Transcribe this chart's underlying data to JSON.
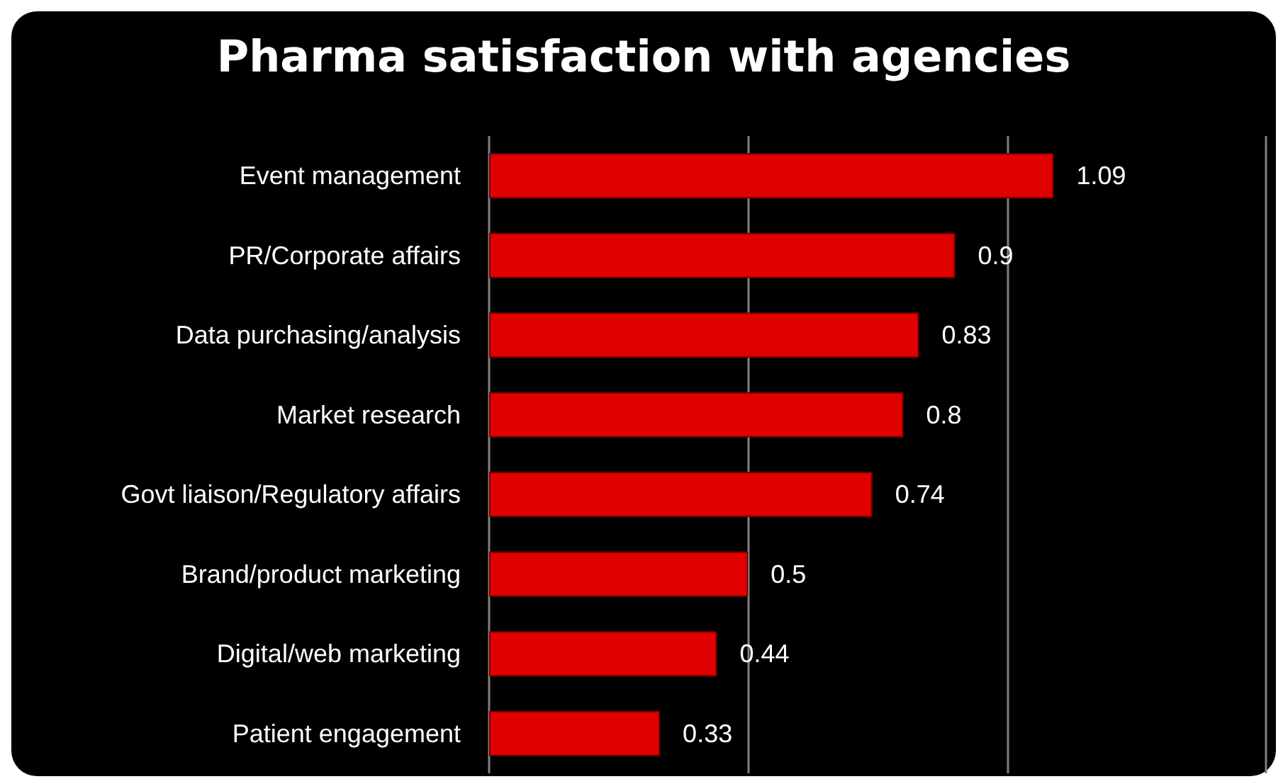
{
  "chart_data": {
    "type": "bar",
    "orientation": "horizontal",
    "title": "Pharma satisfaction with agencies",
    "categories": [
      "Event management",
      "PR/Corporate affairs",
      "Data purchasing/analysis",
      "Market research",
      "Govt liaison/Regulatory affairs",
      "Brand/product marketing",
      "Digital/web marketing",
      "Patient engagement"
    ],
    "values": [
      1.09,
      0.9,
      0.83,
      0.8,
      0.74,
      0.5,
      0.44,
      0.33
    ],
    "color": "#e00000",
    "xlim": [
      0,
      1.5
    ],
    "xticks": [
      {
        "value": 0,
        "label": null
      },
      {
        "value": 0.5,
        "label": null
      },
      {
        "value": 1,
        "label": null
      },
      {
        "value": 1.5,
        "label": null
      }
    ],
    "tick_labels": "y",
    "grid": "x",
    "data_labels": true
  }
}
